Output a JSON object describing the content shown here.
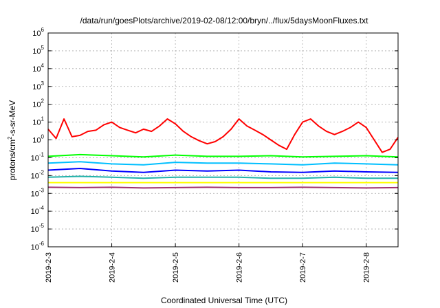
{
  "chart_data": {
    "type": "line",
    "title": "/data/run/goesPlots/archive/2019-02-08/12:00/bryn/../flux/5daysMoonFluxes.txt",
    "xlabel": "Coordinated Universal Time (UTC)",
    "ylabel_base": "protons/cm",
    "ylabel_sup": "2",
    "ylabel_rest": "-s-sr-MeV",
    "y_scale": "log",
    "ylim": [
      1e-06,
      1000000
    ],
    "y_tick_exponents": [
      -6,
      -5,
      -4,
      -3,
      -2,
      -1,
      0,
      1,
      2,
      3,
      4,
      5,
      6
    ],
    "y_tick_base": "10",
    "xlim": [
      "2019-02-03T00:00",
      "2019-02-08T12:00"
    ],
    "x_ticks": [
      "2019-2-3",
      "2019-2-4",
      "2019-2-5",
      "2019-2-6",
      "2019-2-7",
      "2019-2-8"
    ],
    "grid": true,
    "series": [
      {
        "color": "#ff0000",
        "x": [
          "2019-02-03T00:00",
          "2019-02-03T03:00",
          "2019-02-03T06:00",
          "2019-02-03T09:00",
          "2019-02-03T12:00",
          "2019-02-03T15:00",
          "2019-02-03T18:00",
          "2019-02-03T21:00",
          "2019-02-04T00:00",
          "2019-02-04T03:00",
          "2019-02-04T06:00",
          "2019-02-04T09:00",
          "2019-02-04T12:00",
          "2019-02-04T15:00",
          "2019-02-04T18:00",
          "2019-02-04T21:00",
          "2019-02-05T00:00",
          "2019-02-05T03:00",
          "2019-02-05T06:00",
          "2019-02-05T09:00",
          "2019-02-05T12:00",
          "2019-02-05T15:00",
          "2019-02-05T18:00",
          "2019-02-05T21:00",
          "2019-02-06T00:00",
          "2019-02-06T03:00",
          "2019-02-06T06:00",
          "2019-02-06T09:00",
          "2019-02-06T12:00",
          "2019-02-06T15:00",
          "2019-02-06T18:00",
          "2019-02-06T21:00",
          "2019-02-07T00:00",
          "2019-02-07T03:00",
          "2019-02-07T06:00",
          "2019-02-07T09:00",
          "2019-02-07T12:00",
          "2019-02-07T15:00",
          "2019-02-07T18:00",
          "2019-02-07T21:00",
          "2019-02-08T00:00",
          "2019-02-08T03:00",
          "2019-02-08T06:00",
          "2019-02-08T09:00",
          "2019-02-08T12:00"
        ],
        "values": [
          4,
          1.2,
          15,
          1.5,
          1.8,
          3,
          3.5,
          7,
          10,
          5,
          3.5,
          2.5,
          4,
          3,
          6,
          15,
          8,
          3,
          1.5,
          0.9,
          0.6,
          0.8,
          1.5,
          4,
          15,
          6,
          3.5,
          2,
          1,
          0.5,
          0.3,
          2,
          10,
          15,
          6,
          3,
          2,
          3,
          5,
          10,
          5,
          1,
          0.2,
          0.3,
          1.4
        ]
      },
      {
        "color": "#00ff00",
        "x": [
          "2019-02-03T00:00",
          "2019-02-03T12:00",
          "2019-02-04T00:00",
          "2019-02-04T12:00",
          "2019-02-05T00:00",
          "2019-02-05T12:00",
          "2019-02-06T00:00",
          "2019-02-06T12:00",
          "2019-02-07T00:00",
          "2019-02-07T12:00",
          "2019-02-08T00:00",
          "2019-02-08T12:00"
        ],
        "values": [
          0.12,
          0.15,
          0.13,
          0.11,
          0.14,
          0.12,
          0.12,
          0.13,
          0.11,
          0.12,
          0.13,
          0.11
        ]
      },
      {
        "color": "#00bfff",
        "x": [
          "2019-02-03T00:00",
          "2019-02-03T12:00",
          "2019-02-04T00:00",
          "2019-02-04T12:00",
          "2019-02-05T00:00",
          "2019-02-05T12:00",
          "2019-02-06T00:00",
          "2019-02-06T12:00",
          "2019-02-07T00:00",
          "2019-02-07T12:00",
          "2019-02-08T00:00",
          "2019-02-08T12:00"
        ],
        "values": [
          0.05,
          0.06,
          0.045,
          0.04,
          0.055,
          0.05,
          0.05,
          0.045,
          0.04,
          0.05,
          0.045,
          0.04
        ]
      },
      {
        "color": "#0000ff",
        "x": [
          "2019-02-03T00:00",
          "2019-02-03T12:00",
          "2019-02-04T00:00",
          "2019-02-04T12:00",
          "2019-02-05T00:00",
          "2019-02-05T12:00",
          "2019-02-06T00:00",
          "2019-02-06T12:00",
          "2019-02-07T00:00",
          "2019-02-07T12:00",
          "2019-02-08T00:00",
          "2019-02-08T12:00"
        ],
        "values": [
          0.02,
          0.025,
          0.018,
          0.015,
          0.02,
          0.018,
          0.02,
          0.016,
          0.015,
          0.018,
          0.016,
          0.015
        ]
      },
      {
        "color": "#20b2aa",
        "x": [
          "2019-02-03T00:00",
          "2019-02-03T12:00",
          "2019-02-04T00:00",
          "2019-02-04T12:00",
          "2019-02-05T00:00",
          "2019-02-05T12:00",
          "2019-02-06T00:00",
          "2019-02-06T12:00",
          "2019-02-07T00:00",
          "2019-02-07T12:00",
          "2019-02-08T00:00",
          "2019-02-08T12:00"
        ],
        "values": [
          0.008,
          0.009,
          0.008,
          0.007,
          0.008,
          0.008,
          0.008,
          0.007,
          0.007,
          0.008,
          0.007,
          0.007
        ]
      },
      {
        "color": "#ffff00",
        "x": [
          "2019-02-03T00:00",
          "2019-02-03T12:00",
          "2019-02-04T00:00",
          "2019-02-04T12:00",
          "2019-02-05T00:00",
          "2019-02-05T12:00",
          "2019-02-06T00:00",
          "2019-02-06T12:00",
          "2019-02-07T00:00",
          "2019-02-07T12:00",
          "2019-02-08T00:00",
          "2019-02-08T12:00"
        ],
        "values": [
          0.004,
          0.004,
          0.004,
          0.004,
          0.004,
          0.004,
          0.004,
          0.004,
          0.004,
          0.004,
          0.004,
          0.004
        ]
      },
      {
        "color": "#a0306e",
        "x": [
          "2019-02-03T00:00",
          "2019-02-03T12:00",
          "2019-02-04T00:00",
          "2019-02-04T12:00",
          "2019-02-05T00:00",
          "2019-02-05T12:00",
          "2019-02-06T00:00",
          "2019-02-06T12:00",
          "2019-02-07T00:00",
          "2019-02-07T12:00",
          "2019-02-08T00:00",
          "2019-02-08T12:00"
        ],
        "values": [
          0.0022,
          0.0021,
          0.0022,
          0.002,
          0.0021,
          0.0022,
          0.0021,
          0.0021,
          0.0022,
          0.0021,
          0.002,
          0.0021
        ]
      }
    ]
  }
}
